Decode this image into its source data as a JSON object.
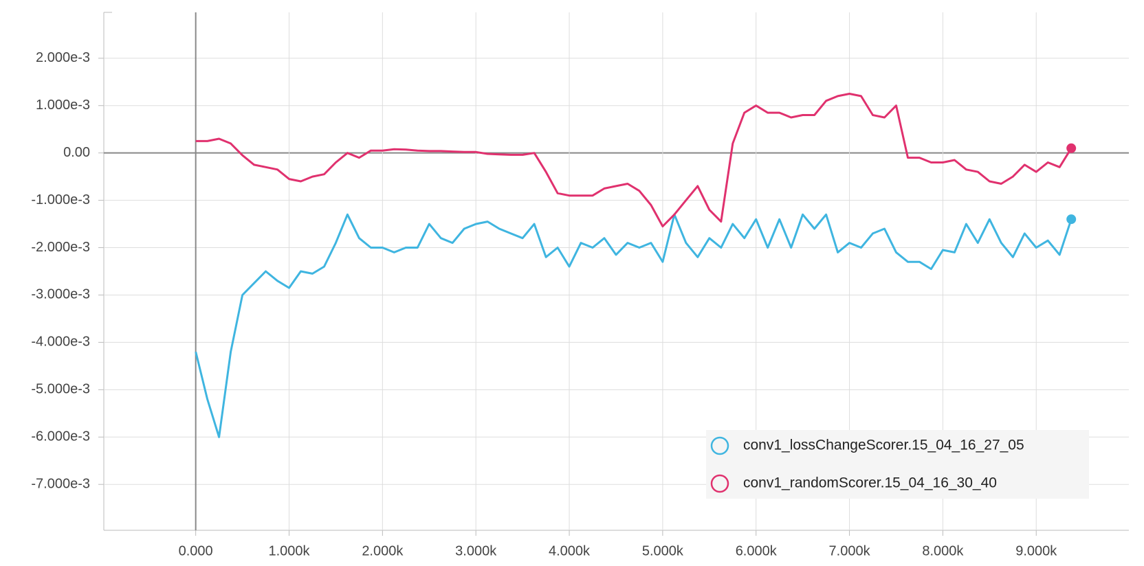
{
  "chart_data": {
    "type": "line",
    "x": [
      0,
      125,
      250,
      375,
      500,
      625,
      750,
      875,
      1000,
      1125,
      1250,
      1375,
      1500,
      1625,
      1750,
      1875,
      2000,
      2125,
      2250,
      2375,
      2500,
      2625,
      2750,
      2875,
      3000,
      3125,
      3250,
      3375,
      3500,
      3625,
      3750,
      3875,
      4000,
      4125,
      4250,
      4375,
      4500,
      4625,
      4750,
      4875,
      5000,
      5125,
      5250,
      5375,
      5500,
      5625,
      5750,
      5875,
      6000,
      6125,
      6250,
      6375,
      6500,
      6625,
      6750,
      6875,
      7000,
      7125,
      7250,
      7375,
      7500,
      7625,
      7750,
      7875,
      8000,
      8125,
      8250,
      8375,
      8500,
      8625,
      8750,
      8875,
      9000,
      9125,
      9250,
      9375
    ],
    "series": [
      {
        "name": "conv1_lossChangeScorer.15_04_16_27_05",
        "color": "#3fb5e0",
        "values": [
          -0.0042,
          -0.0052,
          -0.006,
          -0.0042,
          -0.003,
          -0.00275,
          -0.0025,
          -0.0027,
          -0.00285,
          -0.0025,
          -0.00255,
          -0.0024,
          -0.0019,
          -0.0013,
          -0.0018,
          -0.002,
          -0.002,
          -0.0021,
          -0.002,
          -0.002,
          -0.0015,
          -0.0018,
          -0.0019,
          -0.0016,
          -0.0015,
          -0.00145,
          -0.0016,
          -0.0017,
          -0.0018,
          -0.0015,
          -0.0022,
          -0.002,
          -0.0024,
          -0.0019,
          -0.002,
          -0.0018,
          -0.00215,
          -0.0019,
          -0.002,
          -0.0019,
          -0.0023,
          -0.0013,
          -0.0019,
          -0.0022,
          -0.0018,
          -0.002,
          -0.0015,
          -0.0018,
          -0.0014,
          -0.002,
          -0.0014,
          -0.002,
          -0.0013,
          -0.0016,
          -0.0013,
          -0.0021,
          -0.0019,
          -0.002,
          -0.0017,
          -0.0016,
          -0.0021,
          -0.0023,
          -0.0023,
          -0.00245,
          -0.00205,
          -0.0021,
          -0.0015,
          -0.0019,
          -0.0014,
          -0.0019,
          -0.0022,
          -0.0017,
          -0.002,
          -0.00185,
          -0.00215,
          -0.0014
        ]
      },
      {
        "name": "conv1_randomScorer.15_04_16_30_40",
        "color": "#e0316e",
        "values": [
          0.00025,
          0.00025,
          0.0003,
          0.0002,
          -5e-05,
          -0.00025,
          -0.0003,
          -0.00035,
          -0.00055,
          -0.0006,
          -0.0005,
          -0.00045,
          -0.0002,
          0,
          -0.0001,
          5e-05,
          5e-05,
          8e-05,
          7e-05,
          5e-05,
          4e-05,
          4e-05,
          3e-05,
          2e-05,
          2e-05,
          -2e-05,
          -3e-05,
          -4e-05,
          -4e-05,
          0,
          -0.0004,
          -0.00085,
          -0.0009,
          -0.0009,
          -0.0009,
          -0.00075,
          -0.0007,
          -0.00065,
          -0.0008,
          -0.0011,
          -0.00155,
          -0.0013,
          -0.001,
          -0.0007,
          -0.0012,
          -0.00145,
          0.0002,
          0.00085,
          0.001,
          0.00085,
          0.00085,
          0.00075,
          0.0008,
          0.0008,
          0.0011,
          0.0012,
          0.00125,
          0.0012,
          0.0008,
          0.00075,
          0.001,
          -0.0001,
          -0.0001,
          -0.0002,
          -0.0002,
          -0.00015,
          -0.00035,
          -0.0004,
          -0.0006,
          -0.00065,
          -0.0005,
          -0.00025,
          -0.0004,
          -0.0002,
          -0.0003,
          0.0001
        ]
      }
    ],
    "xlim": [
      -984,
      9992
    ],
    "ylim": [
      -0.007969,
      0.002969
    ],
    "xticks": [
      {
        "value": 0,
        "label": "0.000"
      },
      {
        "value": 1000,
        "label": "1.000k"
      },
      {
        "value": 2000,
        "label": "2.000k"
      },
      {
        "value": 3000,
        "label": "3.000k"
      },
      {
        "value": 4000,
        "label": "4.000k"
      },
      {
        "value": 5000,
        "label": "5.000k"
      },
      {
        "value": 6000,
        "label": "6.000k"
      },
      {
        "value": 7000,
        "label": "7.000k"
      },
      {
        "value": 8000,
        "label": "8.000k"
      },
      {
        "value": 9000,
        "label": "9.000k"
      }
    ],
    "yticks": [
      {
        "value": 0.002,
        "label": "2.000e-3"
      },
      {
        "value": 0.001,
        "label": "1.000e-3"
      },
      {
        "value": 0,
        "label": "0.00"
      },
      {
        "value": -0.001,
        "label": "-1.000e-3"
      },
      {
        "value": -0.002,
        "label": "-2.000e-3"
      },
      {
        "value": -0.003,
        "label": "-3.000e-3"
      },
      {
        "value": -0.004,
        "label": "-4.000e-3"
      },
      {
        "value": -0.005,
        "label": "-5.000e-3"
      },
      {
        "value": -0.006,
        "label": "-6.000e-3"
      },
      {
        "value": -0.007,
        "label": "-7.000e-3"
      }
    ],
    "grid": true,
    "legend": "lower-right"
  }
}
